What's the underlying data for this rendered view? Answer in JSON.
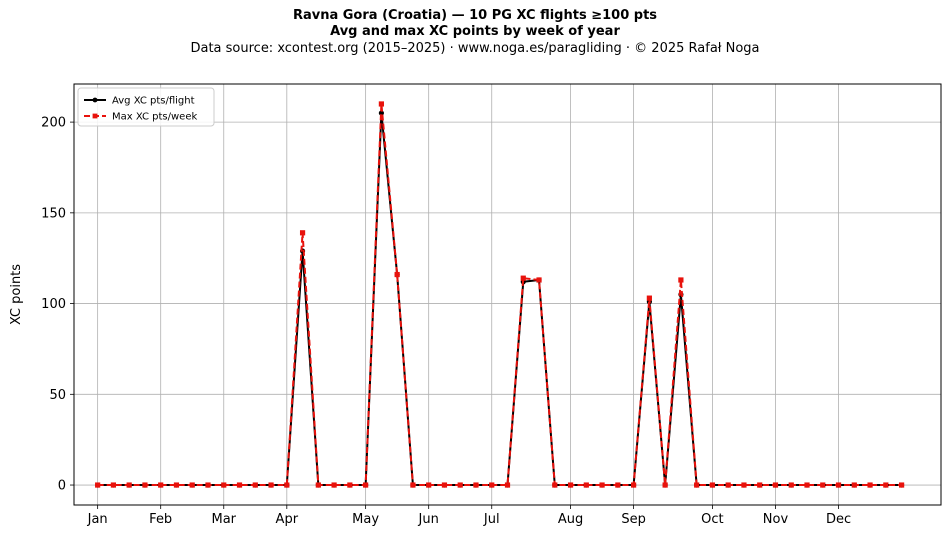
{
  "titles": {
    "line1": "Ravna Gora (Croatia)  —  10 PG XC flights ≥100 pts",
    "line2": "Avg and max XC points by week of year",
    "line3": "Data source: xcontest.org (2015–2025)  ·  www.noga.es/paragliding  ·  © 2025 Rafał Noga"
  },
  "chart_data": {
    "type": "line",
    "title": "Ravna Gora (Croatia)  —  10 PG XC flights ≥100 pts",
    "subtitle": "Avg and max XC points by week of year",
    "xlabel": "",
    "ylabel": "XC points",
    "x": [
      1,
      2,
      3,
      4,
      5,
      6,
      7,
      8,
      9,
      10,
      11,
      12,
      13,
      14,
      15,
      16,
      17,
      18,
      19,
      20,
      21,
      22,
      23,
      24,
      25,
      26,
      27,
      28,
      29,
      30,
      31,
      32,
      33,
      34,
      35,
      36,
      37,
      38,
      39,
      40,
      41,
      42,
      43,
      44,
      45,
      46,
      47,
      48,
      49,
      50,
      51,
      52
    ],
    "xlim": [
      -0.5,
      54.5
    ],
    "ylim": [
      -11,
      221
    ],
    "x_ticks": [
      {
        "x": 1,
        "label": "Jan"
      },
      {
        "x": 5,
        "label": "Feb"
      },
      {
        "x": 9,
        "label": "Mar"
      },
      {
        "x": 13,
        "label": "Apr"
      },
      {
        "x": 18,
        "label": "May"
      },
      {
        "x": 22,
        "label": "Jun"
      },
      {
        "x": 26,
        "label": "Jul"
      },
      {
        "x": 31,
        "label": "Aug"
      },
      {
        "x": 35,
        "label": "Sep"
      },
      {
        "x": 40,
        "label": "Oct"
      },
      {
        "x": 44,
        "label": "Nov"
      },
      {
        "x": 48,
        "label": "Dec"
      }
    ],
    "y_ticks": [
      0,
      50,
      100,
      150,
      200
    ],
    "grid": true,
    "legend_position": "top-left",
    "series": [
      {
        "name": "Avg XC pts/flight",
        "color": "#000000",
        "marker": "circle",
        "style": "solid",
        "values": [
          0,
          0,
          0,
          0,
          0,
          0,
          0,
          0,
          0,
          0,
          0,
          0,
          0,
          129,
          0,
          0,
          0,
          0,
          205,
          116,
          0,
          0,
          0,
          0,
          0,
          0,
          0,
          112,
          113,
          0,
          0,
          0,
          0,
          0,
          0,
          101,
          0,
          105,
          0,
          0,
          0,
          0,
          0,
          0,
          0,
          0,
          0,
          0,
          0,
          0,
          0,
          0
        ]
      },
      {
        "name": "Max XC pts/week",
        "color": "#e8120c",
        "marker": "square",
        "style": "dashed",
        "values": [
          0,
          0,
          0,
          0,
          0,
          0,
          0,
          0,
          0,
          0,
          0,
          0,
          0,
          139,
          0,
          0,
          0,
          0,
          210,
          116,
          0,
          0,
          0,
          0,
          0,
          0,
          0,
          114,
          113,
          0,
          0,
          0,
          0,
          0,
          0,
          103,
          0,
          113,
          0,
          0,
          0,
          0,
          0,
          0,
          0,
          0,
          0,
          0,
          0,
          0,
          0,
          0
        ]
      }
    ]
  }
}
